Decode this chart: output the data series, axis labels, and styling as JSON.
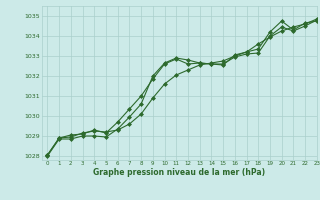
{
  "title": "Graphe pression niveau de la mer (hPa)",
  "background_color": "#cceae8",
  "grid_color": "#aacfcc",
  "line_color": "#2d6a2d",
  "xlim": [
    -0.5,
    23
  ],
  "ylim": [
    1027.8,
    1035.5
  ],
  "yticks": [
    1028,
    1029,
    1030,
    1031,
    1032,
    1033,
    1034,
    1035
  ],
  "xticks": [
    0,
    1,
    2,
    3,
    4,
    5,
    6,
    7,
    8,
    9,
    10,
    11,
    12,
    13,
    14,
    15,
    16,
    17,
    18,
    19,
    20,
    21,
    22,
    23
  ],
  "series1_x": [
    0,
    1,
    2,
    3,
    4,
    5,
    6,
    7,
    8,
    9,
    10,
    11,
    12,
    13,
    14,
    15,
    16,
    17,
    18,
    19,
    20,
    21,
    22,
    23
  ],
  "series1_y": [
    1028.05,
    1028.9,
    1028.95,
    1029.15,
    1029.25,
    1029.2,
    1029.3,
    1029.6,
    1030.1,
    1030.9,
    1031.6,
    1032.05,
    1032.3,
    1032.55,
    1032.65,
    1032.75,
    1033.0,
    1033.2,
    1033.6,
    1033.95,
    1034.25,
    1034.45,
    1034.6,
    1034.85
  ],
  "series2_x": [
    0,
    1,
    2,
    3,
    4,
    5,
    6,
    7,
    8,
    9,
    10,
    11,
    12,
    13,
    14,
    15,
    16,
    17,
    18,
    19,
    20,
    21,
    22,
    23
  ],
  "series2_y": [
    1028.05,
    1028.9,
    1029.05,
    1029.1,
    1029.3,
    1029.15,
    1029.7,
    1030.35,
    1031.0,
    1031.85,
    1032.6,
    1032.85,
    1032.6,
    1032.65,
    1032.6,
    1032.6,
    1032.95,
    1033.1,
    1033.15,
    1034.0,
    1034.45,
    1034.25,
    1034.5,
    1034.8
  ],
  "series3_x": [
    0,
    1,
    2,
    3,
    4,
    5,
    6,
    7,
    8,
    9,
    10,
    11,
    12,
    13,
    14,
    15,
    16,
    17,
    18,
    19,
    20,
    21,
    22,
    23
  ],
  "series3_y": [
    1028.0,
    1028.85,
    1028.85,
    1029.0,
    1029.0,
    1028.95,
    1029.35,
    1029.95,
    1030.6,
    1032.0,
    1032.65,
    1032.9,
    1032.8,
    1032.65,
    1032.6,
    1032.55,
    1033.05,
    1033.2,
    1033.35,
    1034.2,
    1034.75,
    1034.3,
    1034.65,
    1034.75
  ]
}
